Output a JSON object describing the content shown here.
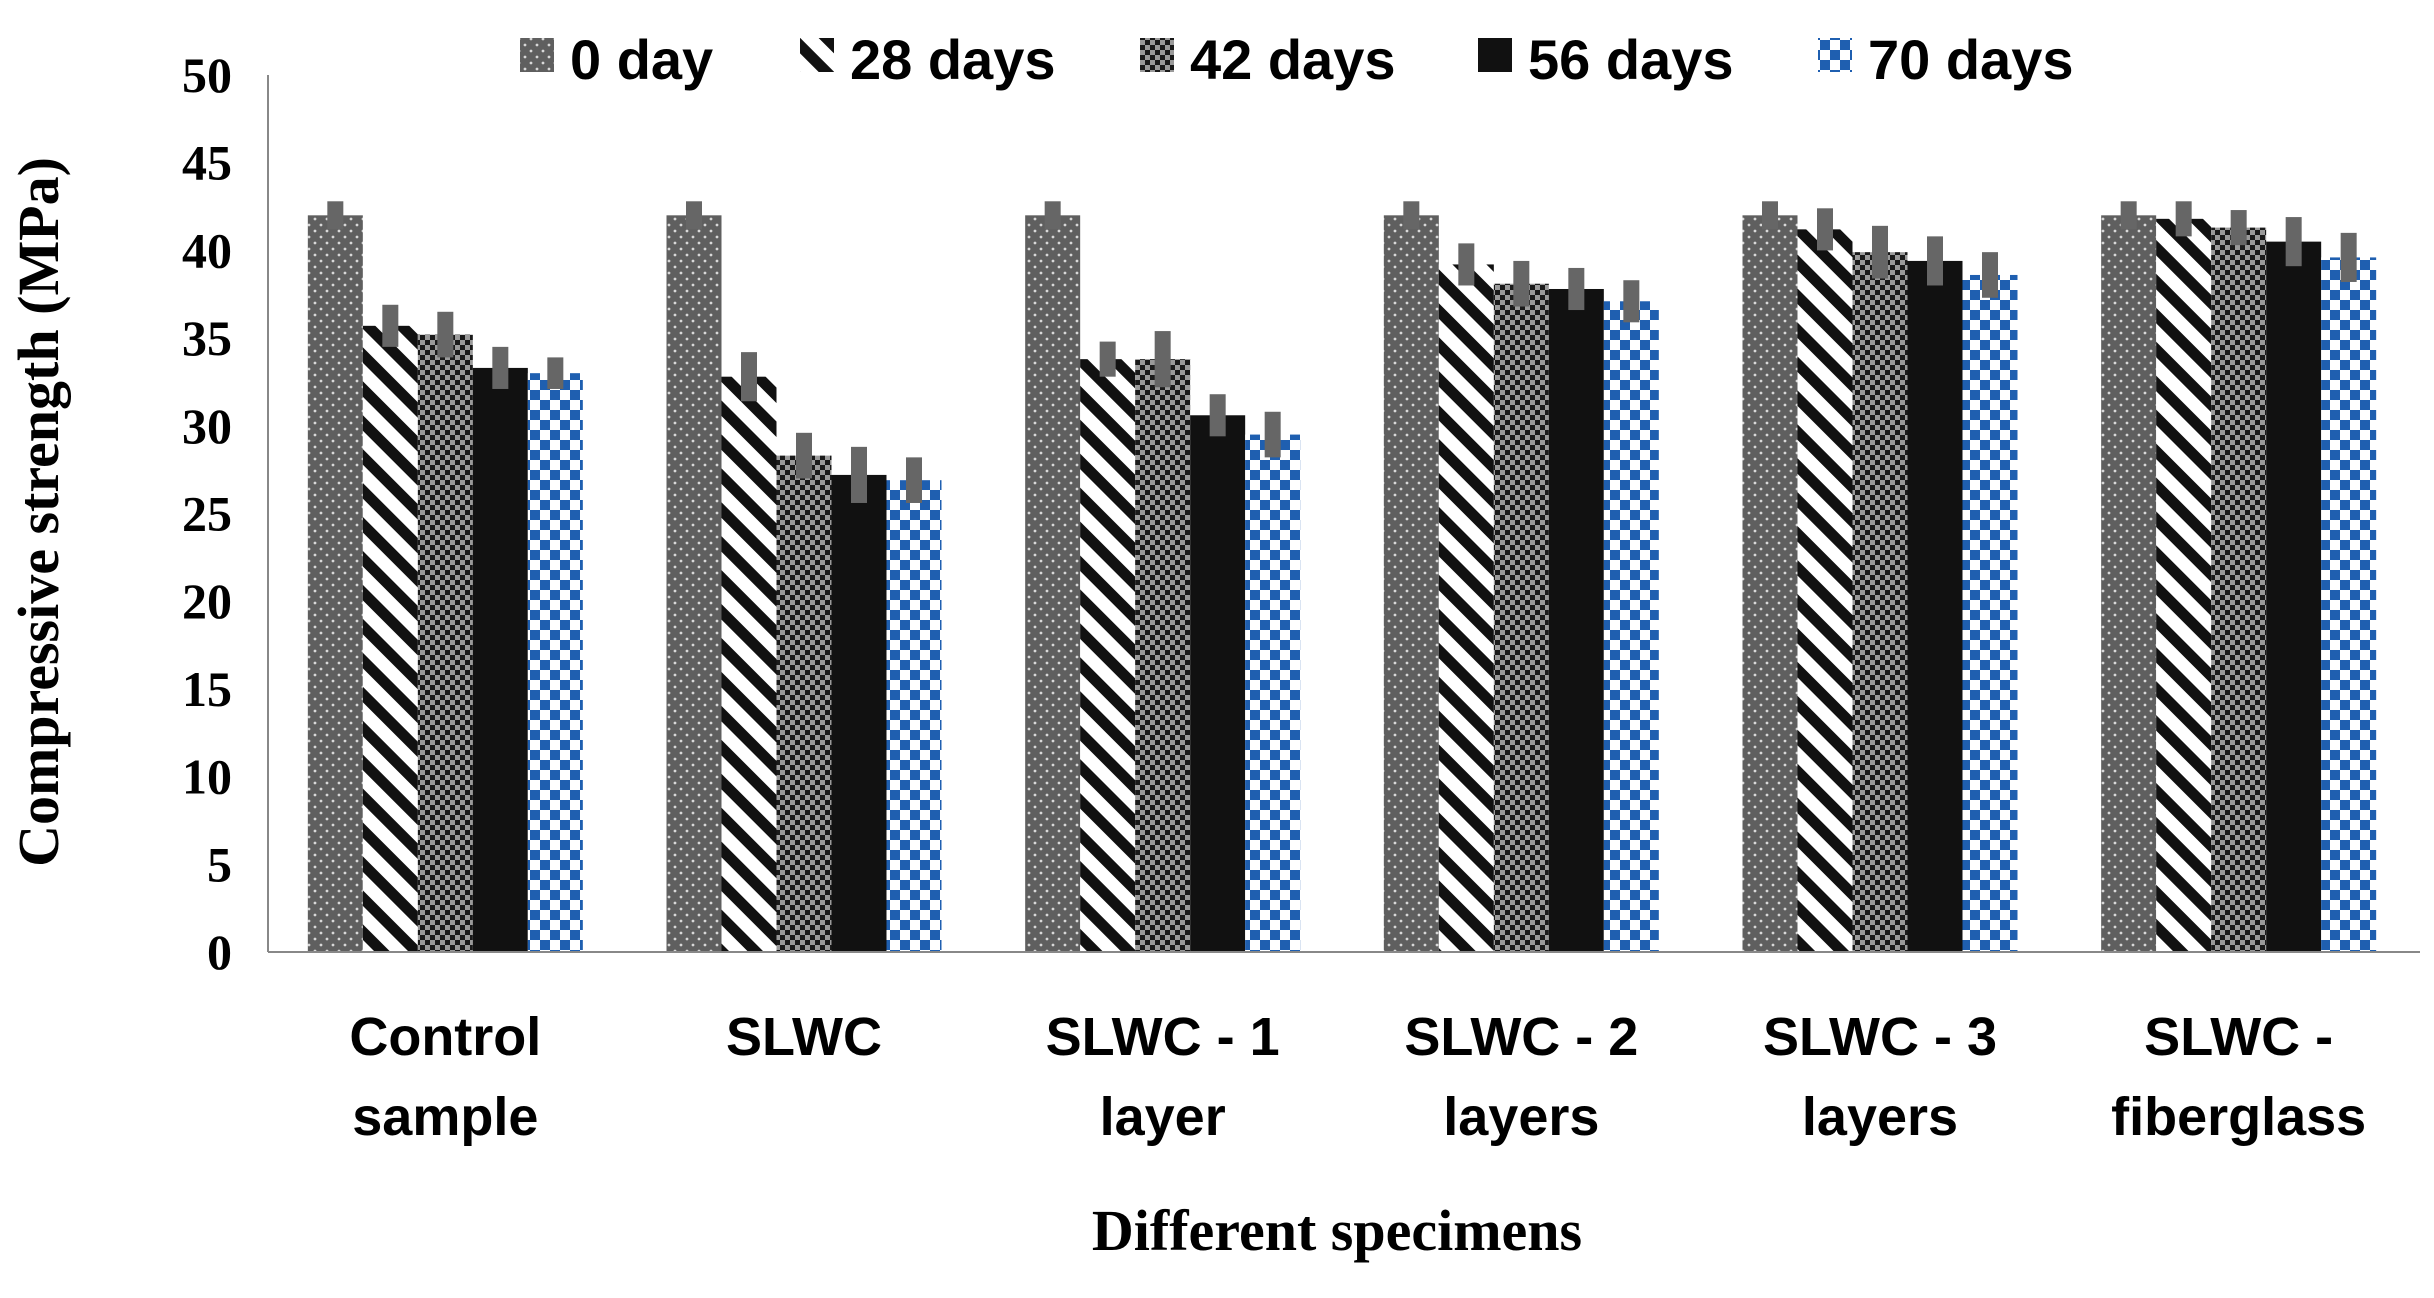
{
  "chart_data": {
    "type": "bar",
    "title": "",
    "xlabel": "Different specimens",
    "ylabel": "Compressive strength (MPa)",
    "ylim": [
      0,
      50
    ],
    "yticks": [
      "0",
      "5",
      "10",
      "15",
      "20",
      "25",
      "30",
      "35",
      "40",
      "45",
      "50"
    ],
    "grid": false,
    "legend_position": "top",
    "categories": [
      [
        "Control",
        "sample"
      ],
      [
        "SLWC"
      ],
      [
        "SLWC - 1",
        "layer"
      ],
      [
        "SLWC - 2",
        "layers"
      ],
      [
        "SLWC - 3",
        "layers"
      ],
      [
        "SLWC -",
        "fiberglass"
      ]
    ],
    "series": [
      {
        "name": "0 day",
        "pattern": "dotted-gray",
        "values": [
          42,
          42,
          42,
          42,
          42,
          42
        ],
        "errors": [
          0.8,
          0.8,
          0.8,
          0.8,
          0.8,
          0.8
        ]
      },
      {
        "name": "28 days",
        "pattern": "diagonal-stripes",
        "values": [
          35.7,
          32.8,
          33.8,
          39.2,
          41.2,
          41.8
        ],
        "errors": [
          1.2,
          1.4,
          1.0,
          1.2,
          1.2,
          1.0
        ]
      },
      {
        "name": "42 days",
        "pattern": "checker-gray",
        "values": [
          35.2,
          28.3,
          33.8,
          38.1,
          39.9,
          41.3
        ],
        "errors": [
          1.3,
          1.3,
          1.6,
          1.3,
          1.5,
          1.0
        ]
      },
      {
        "name": "56 days",
        "pattern": "solid-black",
        "values": [
          33.3,
          27.2,
          30.6,
          37.8,
          39.4,
          40.5
        ],
        "errors": [
          1.2,
          1.6,
          1.2,
          1.2,
          1.4,
          1.4
        ]
      },
      {
        "name": "70 days",
        "pattern": "blue-checker",
        "values": [
          33,
          26.9,
          29.5,
          37.1,
          38.6,
          39.6
        ],
        "errors": [
          0.9,
          1.3,
          1.3,
          1.2,
          1.3,
          1.4
        ]
      }
    ],
    "colors": {
      "dark_gray": "#5f5f5f",
      "dot_color": "#d8d8d8",
      "black": "#111111",
      "blue": "#1f5fb0",
      "error_bar": "#666666",
      "axis": "#888888"
    }
  }
}
